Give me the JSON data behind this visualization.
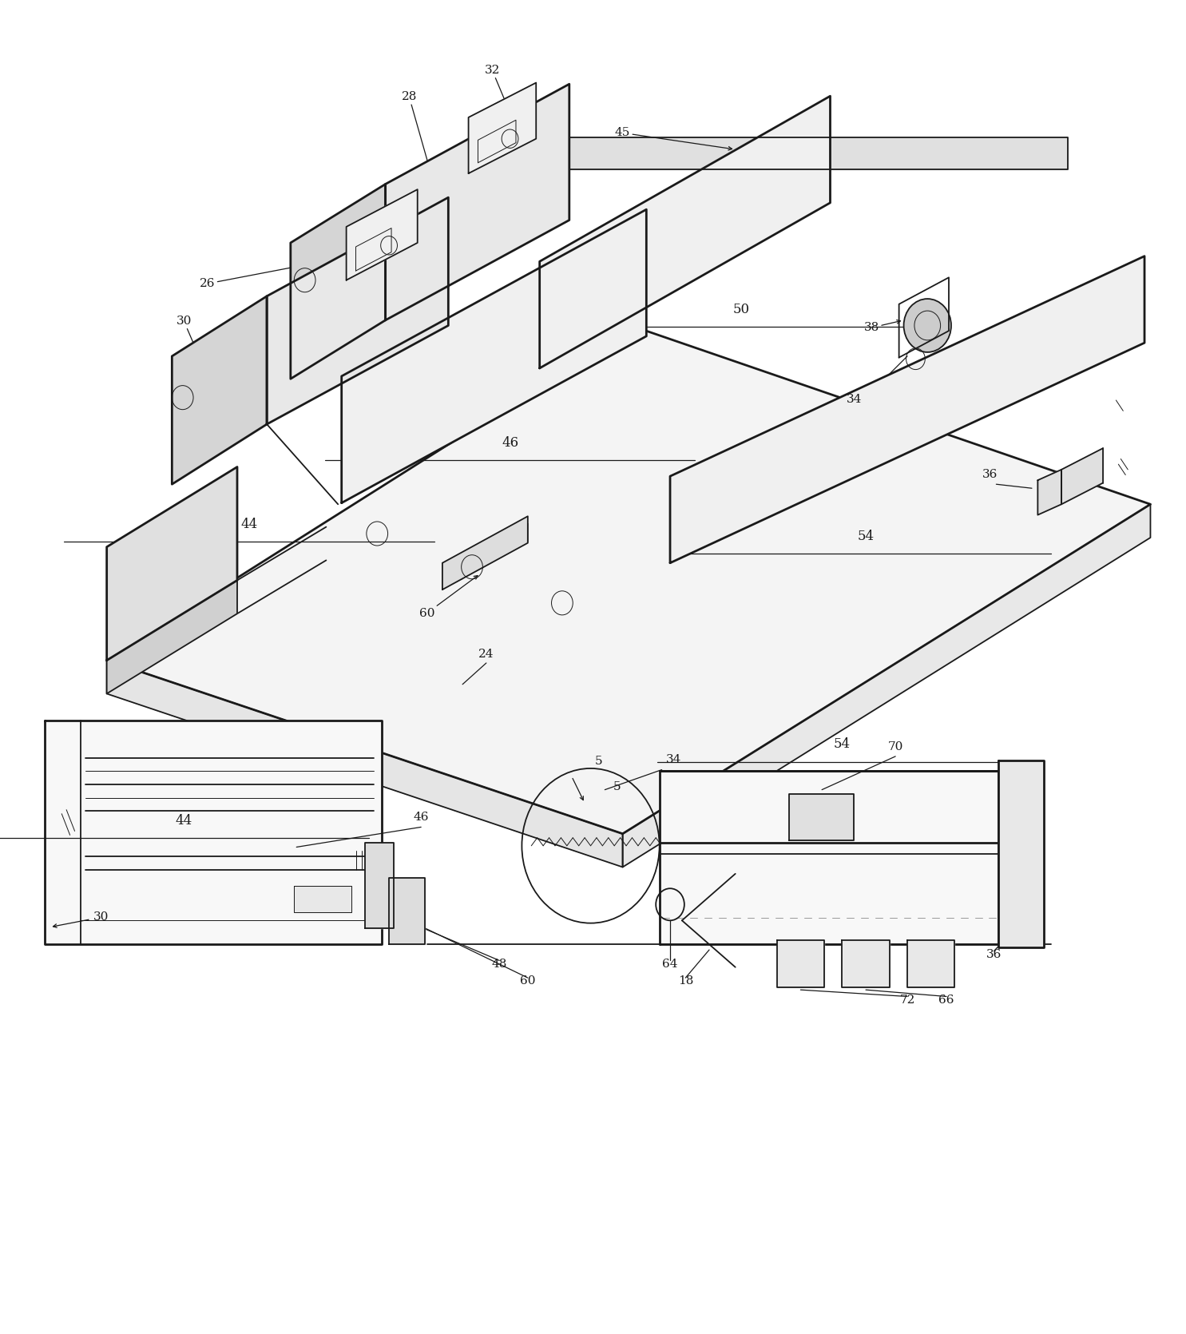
{
  "background": "#ffffff",
  "lc": "#1a1a1a",
  "lw": 1.3,
  "lw2": 2.0,
  "lwt": 0.7,
  "fs": 11,
  "fig_w": 14.85,
  "fig_h": 16.7
}
